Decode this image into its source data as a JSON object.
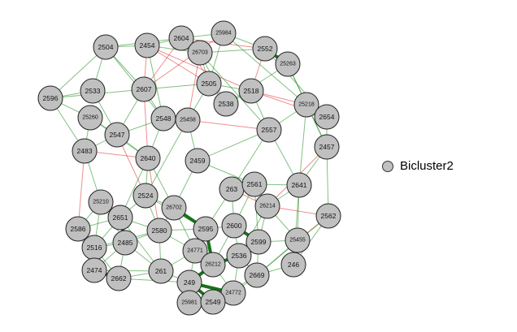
{
  "legend": {
    "label": "Bicluster2",
    "node_color": "#c0c0c0"
  },
  "colors": {
    "positive": "#1e8c1e",
    "strong_positive": "#0a6b0a",
    "negative": "#e53030",
    "node_fill": "#c0c0c0",
    "node_stroke": "#222222"
  },
  "nodes": [
    "2504",
    "2454",
    "2604",
    "25984",
    "26703",
    "2552",
    "25263",
    "2596",
    "2533",
    "2607",
    "2505",
    "2518",
    "25218",
    "2538",
    "25260",
    "2548",
    "25458",
    "2654",
    "2547",
    "2557",
    "2483",
    "2457",
    "2640",
    "2459",
    "263",
    "2561",
    "2641",
    "2524",
    "26702",
    "25210",
    "26214",
    "2562",
    "2586",
    "2651",
    "2600",
    "2595",
    "2580",
    "2485",
    "25455",
    "2599",
    "2516",
    "24771",
    "2536",
    "26212",
    "261",
    "2474",
    "246",
    "2669",
    "2662",
    "249",
    "24772",
    "25981",
    "2549"
  ],
  "edges": [
    [
      "2504",
      "2454",
      "pos"
    ],
    [
      "2504",
      "2607",
      "pos"
    ],
    [
      "2504",
      "2596",
      "pos"
    ],
    [
      "2504",
      "2548",
      "pos"
    ],
    [
      "2504",
      "2533",
      "pos"
    ],
    [
      "2504",
      "2604",
      "pos"
    ],
    [
      "2454",
      "2604",
      "pos"
    ],
    [
      "2454",
      "2607",
      "neg"
    ],
    [
      "2454",
      "26703",
      "pos"
    ],
    [
      "2454",
      "2505",
      "neg"
    ],
    [
      "2454",
      "2518",
      "neg"
    ],
    [
      "2454",
      "2548",
      "pos"
    ],
    [
      "2604",
      "25984",
      "pos"
    ],
    [
      "2604",
      "26703",
      "pos"
    ],
    [
      "2604",
      "2538",
      "neg"
    ],
    [
      "2604",
      "2552",
      "neg"
    ],
    [
      "2604",
      "2607",
      "neg"
    ],
    [
      "25984",
      "2552",
      "pos"
    ],
    [
      "25984",
      "2505",
      "pos"
    ],
    [
      "25984",
      "2607",
      "neg"
    ],
    [
      "25984",
      "25218",
      "pos"
    ],
    [
      "26703",
      "2505",
      "pos"
    ],
    [
      "26703",
      "2538",
      "pos"
    ],
    [
      "26703",
      "25458",
      "neg"
    ],
    [
      "26703",
      "2557",
      "pos"
    ],
    [
      "2552",
      "25263",
      "strong"
    ],
    [
      "2552",
      "2518",
      "neg"
    ],
    [
      "2552",
      "2654",
      "pos"
    ],
    [
      "2552",
      "26703",
      "pos"
    ],
    [
      "25263",
      "25218",
      "pos"
    ],
    [
      "25263",
      "2457",
      "pos"
    ],
    [
      "25263",
      "2538",
      "pos"
    ],
    [
      "2596",
      "2607",
      "pos"
    ],
    [
      "2596",
      "2533",
      "pos"
    ],
    [
      "2596",
      "25260",
      "pos"
    ],
    [
      "2607",
      "2548",
      "pos"
    ],
    [
      "2607",
      "2505",
      "pos"
    ],
    [
      "2607",
      "2547",
      "pos"
    ],
    [
      "2607",
      "2640",
      "neg"
    ],
    [
      "2505",
      "2518",
      "pos"
    ],
    [
      "2505",
      "2538",
      "pos"
    ],
    [
      "2505",
      "25458",
      "pos"
    ],
    [
      "2518",
      "25218",
      "neg"
    ],
    [
      "2518",
      "2538",
      "pos"
    ],
    [
      "2518",
      "2557",
      "pos"
    ],
    [
      "2518",
      "2654",
      "neg"
    ],
    [
      "25218",
      "2654",
      "neg"
    ],
    [
      "25218",
      "2557",
      "pos"
    ],
    [
      "25218",
      "2457",
      "pos"
    ],
    [
      "25218",
      "2641",
      "pos"
    ],
    [
      "2548",
      "25458",
      "pos"
    ],
    [
      "2548",
      "2547",
      "pos"
    ],
    [
      "2548",
      "2640",
      "pos"
    ],
    [
      "25458",
      "2459",
      "pos"
    ],
    [
      "25458",
      "2557",
      "neg"
    ],
    [
      "25458",
      "2524",
      "pos"
    ],
    [
      "25260",
      "2547",
      "pos"
    ],
    [
      "25260",
      "2483",
      "pos"
    ],
    [
      "25260",
      "2640",
      "pos"
    ],
    [
      "2547",
      "2483",
      "pos"
    ],
    [
      "2547",
      "2640",
      "pos"
    ],
    [
      "2547",
      "2524",
      "neg"
    ],
    [
      "2557",
      "2459",
      "pos"
    ],
    [
      "2557",
      "2641",
      "pos"
    ],
    [
      "2557",
      "263",
      "pos"
    ],
    [
      "2483",
      "2640",
      "neg"
    ],
    [
      "2483",
      "25210",
      "pos"
    ],
    [
      "2483",
      "2586",
      "neg"
    ],
    [
      "2457",
      "2641",
      "pos"
    ],
    [
      "2457",
      "2562",
      "pos"
    ],
    [
      "2457",
      "26214",
      "neg"
    ],
    [
      "2640",
      "2524",
      "pos"
    ],
    [
      "2640",
      "2580",
      "neg"
    ],
    [
      "2640",
      "2651",
      "pos"
    ],
    [
      "2640",
      "26702",
      "pos"
    ],
    [
      "2459",
      "2561",
      "pos"
    ],
    [
      "2459",
      "26702",
      "pos"
    ],
    [
      "263",
      "2561",
      "neg"
    ],
    [
      "263",
      "26214",
      "neg"
    ],
    [
      "263",
      "2600",
      "pos"
    ],
    [
      "263",
      "2595",
      "pos"
    ],
    [
      "2561",
      "26214",
      "neg"
    ],
    [
      "2561",
      "2641",
      "pos"
    ],
    [
      "2561",
      "2599",
      "pos"
    ],
    [
      "2561",
      "2600",
      "pos"
    ],
    [
      "2641",
      "26214",
      "pos"
    ],
    [
      "2641",
      "25455",
      "pos"
    ],
    [
      "2641",
      "246",
      "pos"
    ],
    [
      "2524",
      "26702",
      "pos"
    ],
    [
      "2524",
      "2580",
      "pos"
    ],
    [
      "2524",
      "2651",
      "pos"
    ],
    [
      "2524",
      "2595",
      "pos"
    ],
    [
      "26702",
      "2580",
      "pos"
    ],
    [
      "26702",
      "2595",
      "strong"
    ],
    [
      "26702",
      "24771",
      "pos"
    ],
    [
      "25210",
      "2651",
      "pos"
    ],
    [
      "25210",
      "2485",
      "pos"
    ],
    [
      "25210",
      "2586",
      "pos"
    ],
    [
      "26214",
      "2599",
      "pos"
    ],
    [
      "26214",
      "2562",
      "neg"
    ],
    [
      "26214",
      "25455",
      "pos"
    ],
    [
      "26214",
      "2536",
      "pos"
    ],
    [
      "2562",
      "25455",
      "neg"
    ],
    [
      "2562",
      "246",
      "pos"
    ],
    [
      "2586",
      "2651",
      "pos"
    ],
    [
      "2586",
      "2516",
      "pos"
    ],
    [
      "2651",
      "2485",
      "strong"
    ],
    [
      "2651",
      "2580",
      "pos"
    ],
    [
      "2651",
      "2516",
      "pos"
    ],
    [
      "2651",
      "261",
      "pos"
    ],
    [
      "2600",
      "2599",
      "strong"
    ],
    [
      "2600",
      "2595",
      "pos"
    ],
    [
      "2600",
      "2536",
      "pos"
    ],
    [
      "2600",
      "26212",
      "pos"
    ],
    [
      "2595",
      "24771",
      "pos"
    ],
    [
      "2595",
      "2580",
      "pos"
    ],
    [
      "2595",
      "26212",
      "strong"
    ],
    [
      "2580",
      "261",
      "pos"
    ],
    [
      "2580",
      "2485",
      "pos"
    ],
    [
      "2580",
      "24771",
      "pos"
    ],
    [
      "2485",
      "2516",
      "pos"
    ],
    [
      "2485",
      "2474",
      "pos"
    ],
    [
      "2485",
      "2662",
      "pos"
    ],
    [
      "25455",
      "246",
      "pos"
    ],
    [
      "25455",
      "2669",
      "pos"
    ],
    [
      "25455",
      "2599",
      "pos"
    ],
    [
      "2599",
      "2536",
      "strong"
    ],
    [
      "2599",
      "2669",
      "pos"
    ],
    [
      "2516",
      "2474",
      "strong"
    ],
    [
      "2516",
      "2662",
      "pos"
    ],
    [
      "24771",
      "26212",
      "pos"
    ],
    [
      "24771",
      "249",
      "pos"
    ],
    [
      "24771",
      "261",
      "pos"
    ],
    [
      "2536",
      "26212",
      "strong"
    ],
    [
      "2536",
      "2669",
      "pos"
    ],
    [
      "2536",
      "24772",
      "pos"
    ],
    [
      "26212",
      "249",
      "strong"
    ],
    [
      "26212",
      "24772",
      "pos"
    ],
    [
      "261",
      "249",
      "pos"
    ],
    [
      "261",
      "2662",
      "pos"
    ],
    [
      "2474",
      "2662",
      "strong"
    ],
    [
      "246",
      "2669",
      "pos"
    ],
    [
      "2669",
      "24772",
      "pos"
    ],
    [
      "2669",
      "2549",
      "pos"
    ],
    [
      "249",
      "25981",
      "pos"
    ],
    [
      "249",
      "2549",
      "strong"
    ],
    [
      "249",
      "24772",
      "strong"
    ],
    [
      "24772",
      "2549",
      "pos"
    ],
    [
      "25981",
      "2549",
      "pos"
    ],
    [
      "2662",
      "249",
      "pos"
    ],
    [
      "2474",
      "261",
      "pos"
    ],
    [
      "2596",
      "2483",
      "pos"
    ],
    [
      "2533",
      "2547",
      "pos"
    ],
    [
      "2654",
      "2457",
      "pos"
    ],
    [
      "2562",
      "2669",
      "pos"
    ],
    [
      "2586",
      "2474",
      "pos"
    ],
    [
      "25210",
      "2516",
      "pos"
    ],
    [
      "2580",
      "2516",
      "pos"
    ],
    [
      "2485",
      "261",
      "pos"
    ]
  ]
}
